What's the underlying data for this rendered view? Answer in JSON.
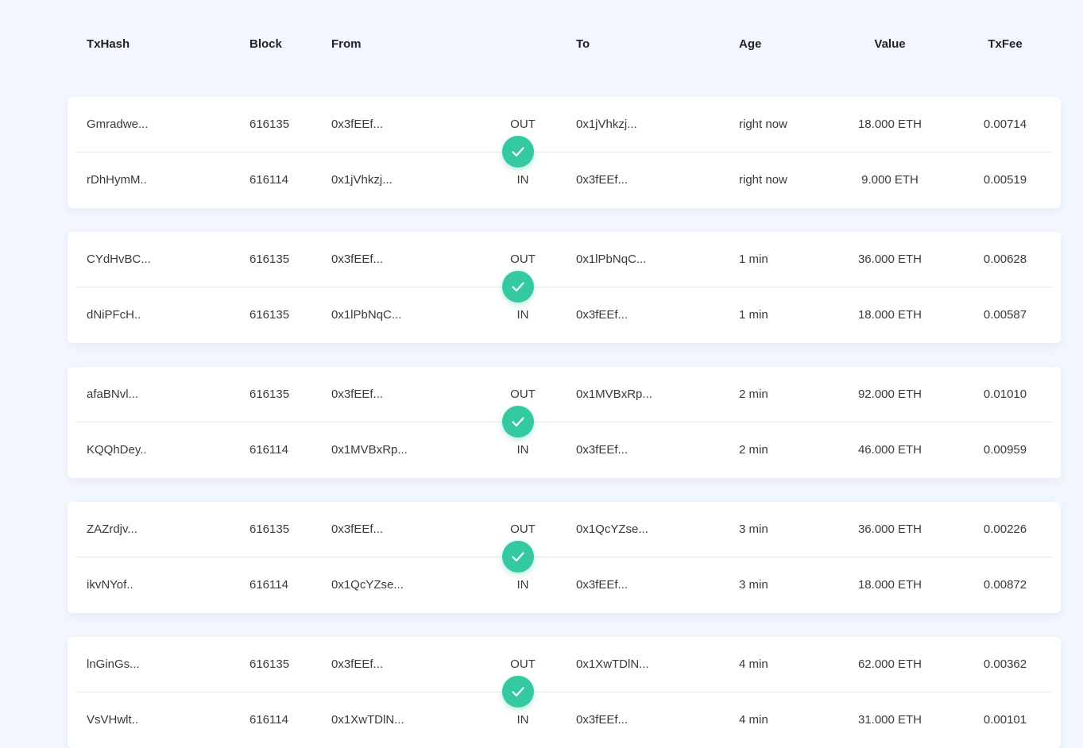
{
  "header": {
    "txhash": "TxHash",
    "block": "Block",
    "from": "From",
    "to": "To",
    "age": "Age",
    "value": "Value",
    "txfee": "TxFee"
  },
  "accent_color": "#35c9a2",
  "check_icon": "check-icon",
  "transactions": [
    {
      "out": {
        "hash": "Gmradwe...",
        "block": "616135",
        "from": "0x3fEEf...",
        "dir": "OUT",
        "to": "0x1jVhkzj...",
        "age": "right now",
        "value": "18.000 ETH",
        "fee": "0.00714"
      },
      "in": {
        "hash": "rDhHymM..",
        "block": "616114",
        "from": "0x1jVhkzj...",
        "dir": "IN",
        "to": "0x3fEEf...",
        "age": "right now",
        "value": "9.000 ETH",
        "fee": "0.00519"
      }
    },
    {
      "out": {
        "hash": "CYdHvBC...",
        "block": "616135",
        "from": "0x3fEEf...",
        "dir": "OUT",
        "to": "0x1lPbNqC...",
        "age": "1 min",
        "value": "36.000 ETH",
        "fee": "0.00628"
      },
      "in": {
        "hash": "dNiPFcH..",
        "block": "616135",
        "from": "0x1lPbNqC...",
        "dir": "IN",
        "to": "0x3fEEf...",
        "age": "1 min",
        "value": "18.000 ETH",
        "fee": "0.00587"
      }
    },
    {
      "out": {
        "hash": "afaBNvl...",
        "block": "616135",
        "from": "0x3fEEf...",
        "dir": "OUT",
        "to": "0x1MVBxRp...",
        "age": "2 min",
        "value": "92.000 ETH",
        "fee": "0.01010"
      },
      "in": {
        "hash": "KQQhDey..",
        "block": "616114",
        "from": "0x1MVBxRp...",
        "dir": "IN",
        "to": "0x3fEEf...",
        "age": "2 min",
        "value": "46.000 ETH",
        "fee": "0.00959"
      }
    },
    {
      "out": {
        "hash": "ZAZrdjv...",
        "block": "616135",
        "from": "0x3fEEf...",
        "dir": "OUT",
        "to": "0x1QcYZse...",
        "age": "3 min",
        "value": "36.000 ETH",
        "fee": "0.00226"
      },
      "in": {
        "hash": "ikvNYof..",
        "block": "616114",
        "from": "0x1QcYZse...",
        "dir": "IN",
        "to": "0x3fEEf...",
        "age": "3 min",
        "value": "18.000 ETH",
        "fee": "0.00872"
      }
    },
    {
      "out": {
        "hash": "lnGinGs...",
        "block": "616135",
        "from": "0x3fEEf...",
        "dir": "OUT",
        "to": "0x1XwTDlN...",
        "age": "4 min",
        "value": "62.000 ETH",
        "fee": "0.00362"
      },
      "in": {
        "hash": "VsVHwlt..",
        "block": "616114",
        "from": "0x1XwTDlN...",
        "dir": "IN",
        "to": "0x3fEEf...",
        "age": "4 min",
        "value": "31.000 ETH",
        "fee": "0.00101"
      }
    }
  ]
}
